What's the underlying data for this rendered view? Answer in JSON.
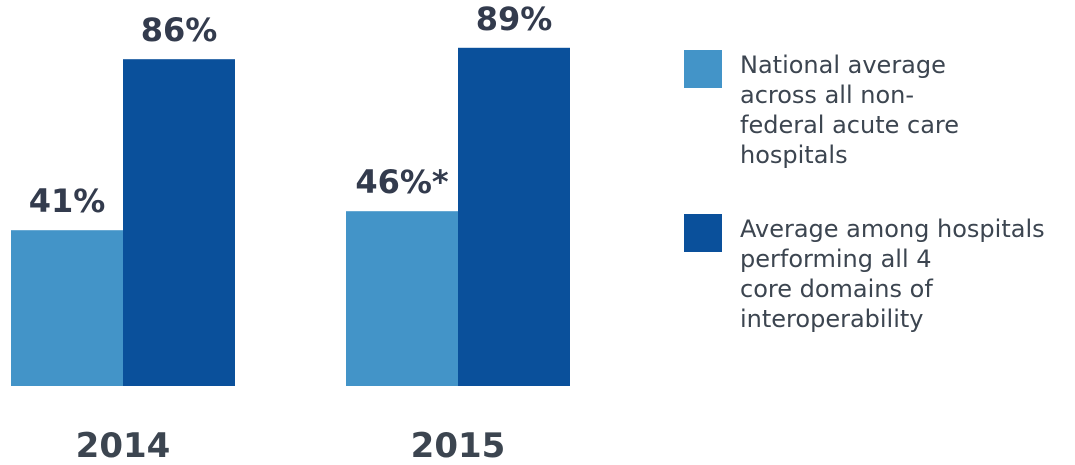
{
  "chart_data": {
    "type": "bar",
    "categories": [
      "2014",
      "2015"
    ],
    "series": [
      {
        "name": "National average across all non-federal acute care hospitals",
        "color": "#4394c8",
        "values": [
          41,
          46
        ],
        "labels": [
          "41%",
          "46%*"
        ]
      },
      {
        "name": "Average among hospitals performing all 4 core domains of interoperability",
        "color": "#0a509b",
        "values": [
          86,
          89
        ],
        "labels": [
          "86%",
          "89%"
        ]
      }
    ],
    "title": "",
    "xlabel": "",
    "ylabel": "",
    "ylim": [
      0,
      100
    ],
    "grid": false,
    "legend_position": "right"
  },
  "legend": {
    "items": [
      {
        "label_lines": [
          "National average",
          "across all non-",
          "federal acute care",
          "hospitals"
        ],
        "color": "#4394c8"
      },
      {
        "label_lines": [
          "Average among hospitals",
          "performing all 4",
          "core domains of",
          "interoperability"
        ],
        "color": "#0a509b"
      }
    ]
  }
}
